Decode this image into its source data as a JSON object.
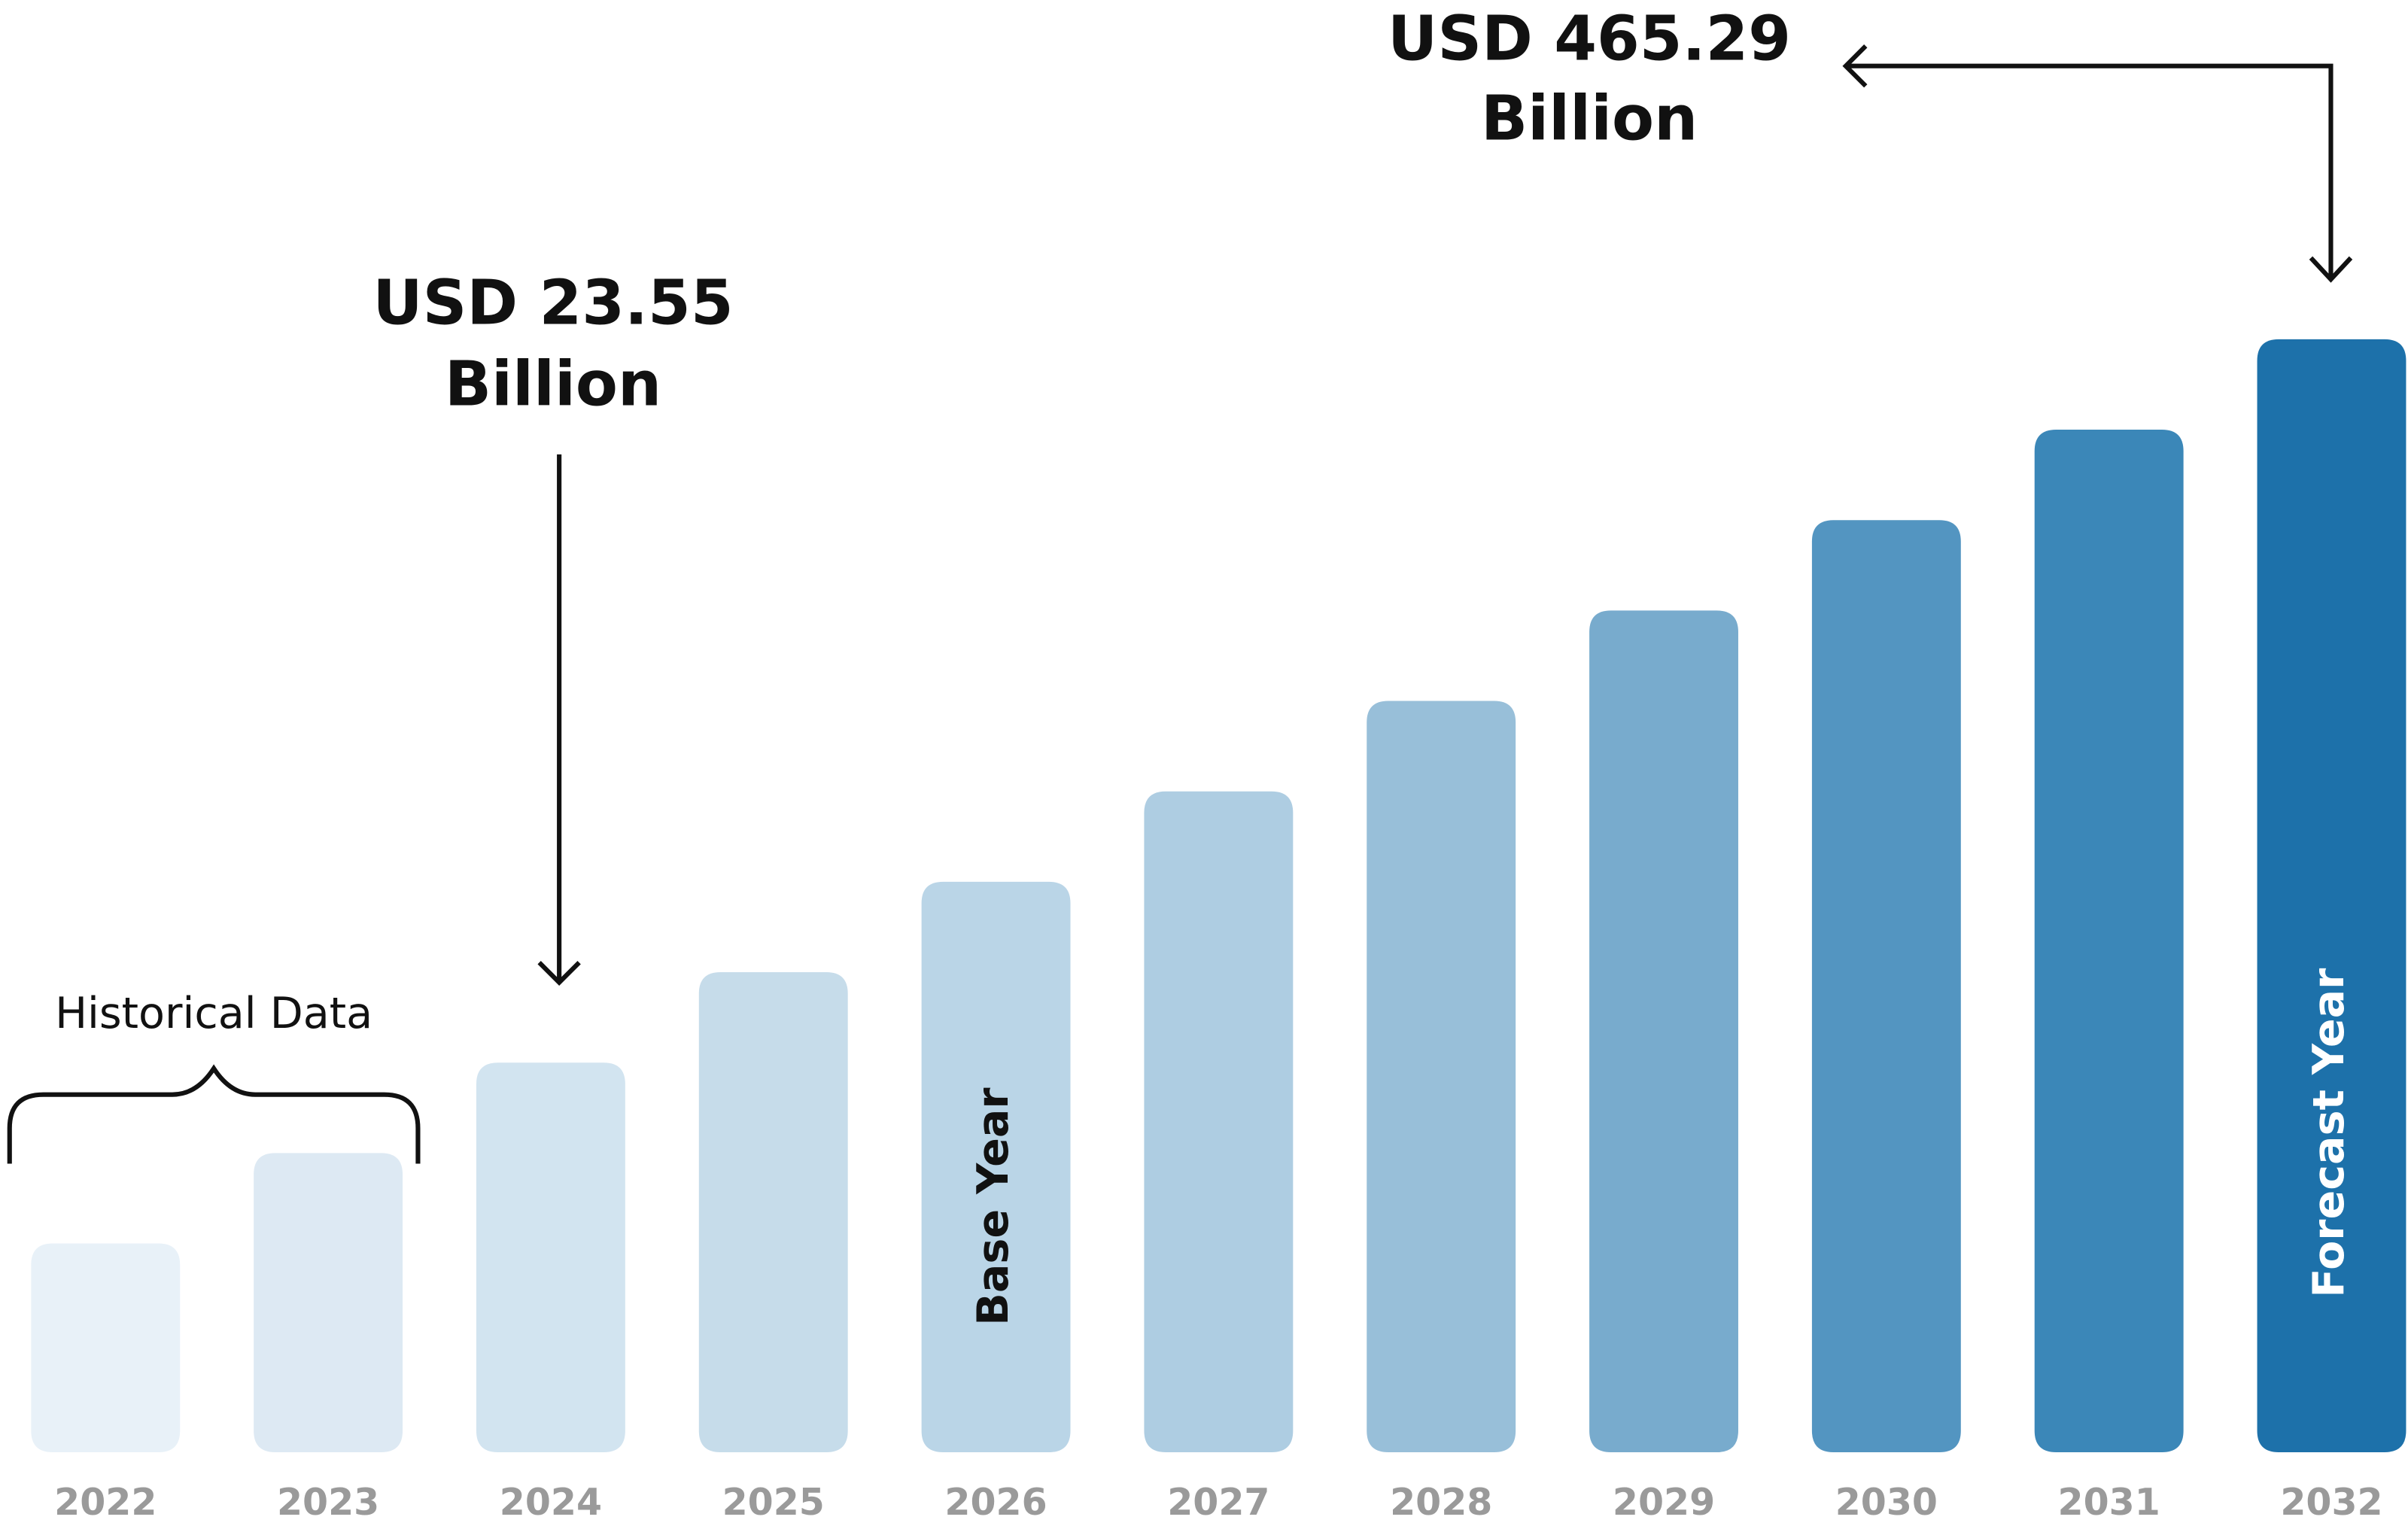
{
  "chart_data": {
    "type": "bar",
    "categories": [
      "2022",
      "2023",
      "2024",
      "2025",
      "2026",
      "2027",
      "2028",
      "2029",
      "2030",
      "2031",
      "2032"
    ],
    "colors": [
      "#e8f1f8",
      "#dde9f3",
      "#d2e4f0",
      "#c6dcea",
      "#bad5e7",
      "#aecde2",
      "#98bfd9",
      "#78abcd",
      "#5395c1",
      "#3b87b8",
      "#1d71aa"
    ],
    "historical_label": "Historical Data",
    "base_year_label": "Base Year",
    "forecast_year_label": "Forecast Year",
    "annotations": [
      {
        "lines": [
          "USD 23.55",
          "Billion"
        ]
      },
      {
        "lines": [
          "USD 465.29",
          "Billion"
        ]
      }
    ]
  }
}
